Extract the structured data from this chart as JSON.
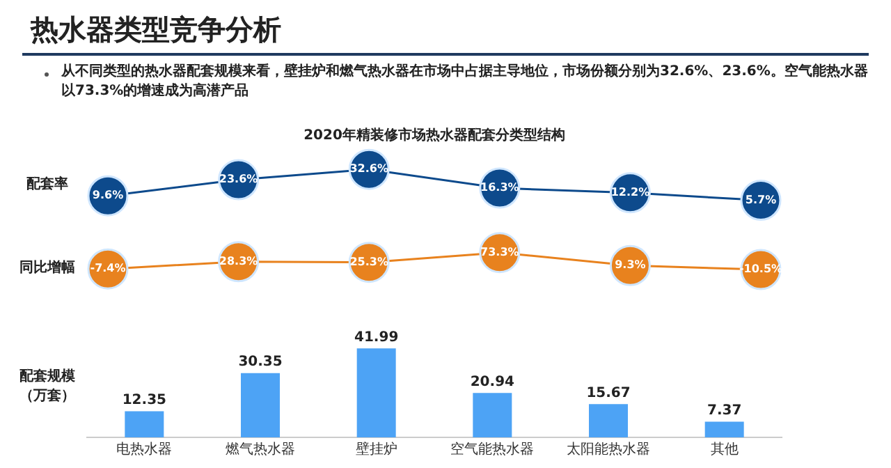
{
  "chart_data": [
    {
      "type": "line",
      "title": "2020年精装修市场热水器配套分类型结构",
      "annotations": [
        "热水器类型竞争分析",
        "从不同类型的热水器配套规模来看，壁挂炉和燃气热水器在市场中占据主导地位，市场份额分别为32.6%、23.6%。空气能热水器以73.3%的增速成为高潜产品"
      ],
      "ylabel": "配套率",
      "categories": [
        null,
        null,
        null,
        null,
        null,
        null
      ],
      "tick_labels": false,
      "grid": false,
      "legend": false,
      "marker": "circle",
      "series": [
        {
          "color": "#0d4a8c",
          "values": [
            9.6,
            23.6,
            32.6,
            16.3,
            12.2,
            5.7
          ],
          "value_labels": [
            "9.6%",
            "23.6%",
            "32.6%",
            "16.3%",
            "12.2%",
            "5.7%"
          ]
        }
      ]
    },
    {
      "type": "line",
      "ylabel": "同比增幅",
      "categories": [
        null,
        null,
        null,
        null,
        null,
        null
      ],
      "tick_labels": false,
      "grid": false,
      "legend": false,
      "marker": "circle",
      "series": [
        {
          "color": "#e8821e",
          "values": [
            -7.4,
            28.3,
            25.3,
            73.3,
            9.3,
            -10.5
          ],
          "value_labels": [
            "-7.4%",
            "28.3%",
            "25.3%",
            "73.3%",
            "9.3%",
            "-10.5%"
          ]
        }
      ]
    },
    {
      "type": "bar",
      "ylabel": "配套规模（万套）",
      "categories": [
        "电热水器",
        "燃气热水器",
        "壁挂炉",
        "空气能热水器",
        "太阳能热水器",
        "其他"
      ],
      "tick_labels": "x",
      "grid": false,
      "legend": false,
      "data_labels": true,
      "values": [
        12.35,
        30.35,
        41.99,
        20.94,
        15.67,
        7.37
      ],
      "color": "#4da3f5"
    }
  ]
}
